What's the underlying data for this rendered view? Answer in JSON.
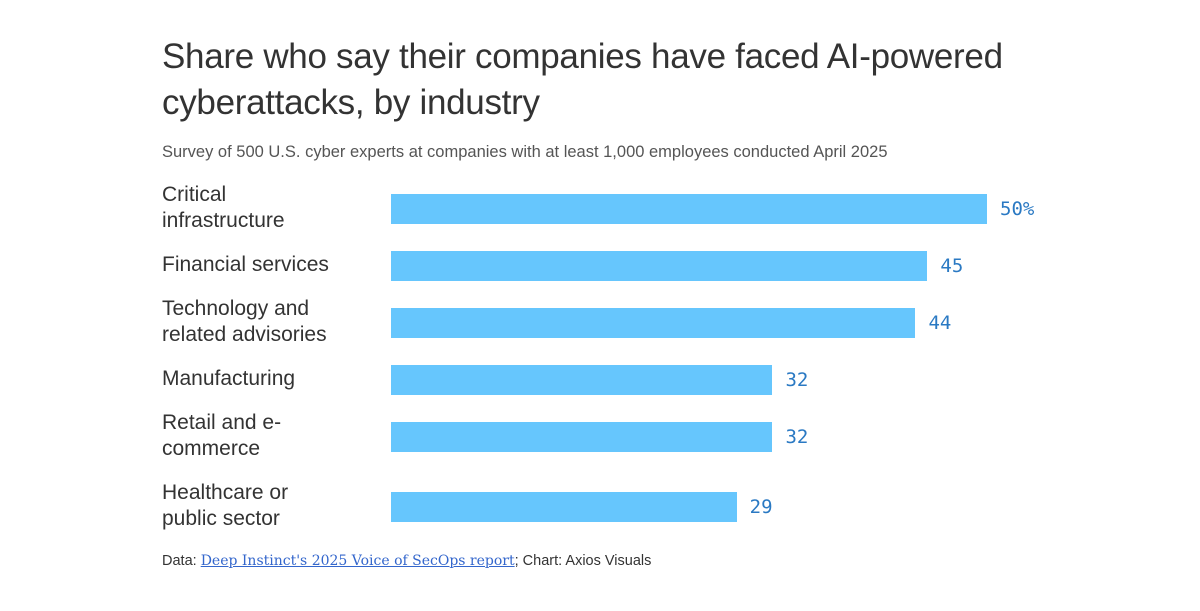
{
  "chart_data": {
    "type": "bar",
    "orientation": "horizontal",
    "title": "Share who say their companies have faced AI-powered cyberattacks, by industry",
    "subtitle": "Survey of 500 U.S. cyber experts at companies with at least 1,000 employees conducted April 2025",
    "categories": [
      "Critical infrastructure",
      "Financial services",
      "Technology and related advisories",
      "Manufacturing",
      "Retail and e-commerce",
      "Healthcare or public sector"
    ],
    "category_lines": [
      [
        "Critical",
        "infrastructure"
      ],
      [
        "Financial services"
      ],
      [
        "Technology and",
        "related advisories"
      ],
      [
        "Manufacturing"
      ],
      [
        "Retail and e-",
        "commerce"
      ],
      [
        "Healthcare or",
        "public sector"
      ]
    ],
    "values": [
      50,
      45,
      44,
      32,
      32,
      29
    ],
    "value_labels": [
      "50%",
      "45",
      "44",
      "32",
      "32",
      "29"
    ],
    "unit": "%",
    "xlim": [
      0,
      50
    ],
    "grid": false,
    "legend": "none",
    "bar_color": "#66c6fd",
    "label_color": "#2a79c3"
  },
  "footer": {
    "prefix": "Data: ",
    "link_text": "Deep Instinct's 2025 Voice of SecOps report",
    "suffix": "; Chart: Axios Visuals"
  }
}
